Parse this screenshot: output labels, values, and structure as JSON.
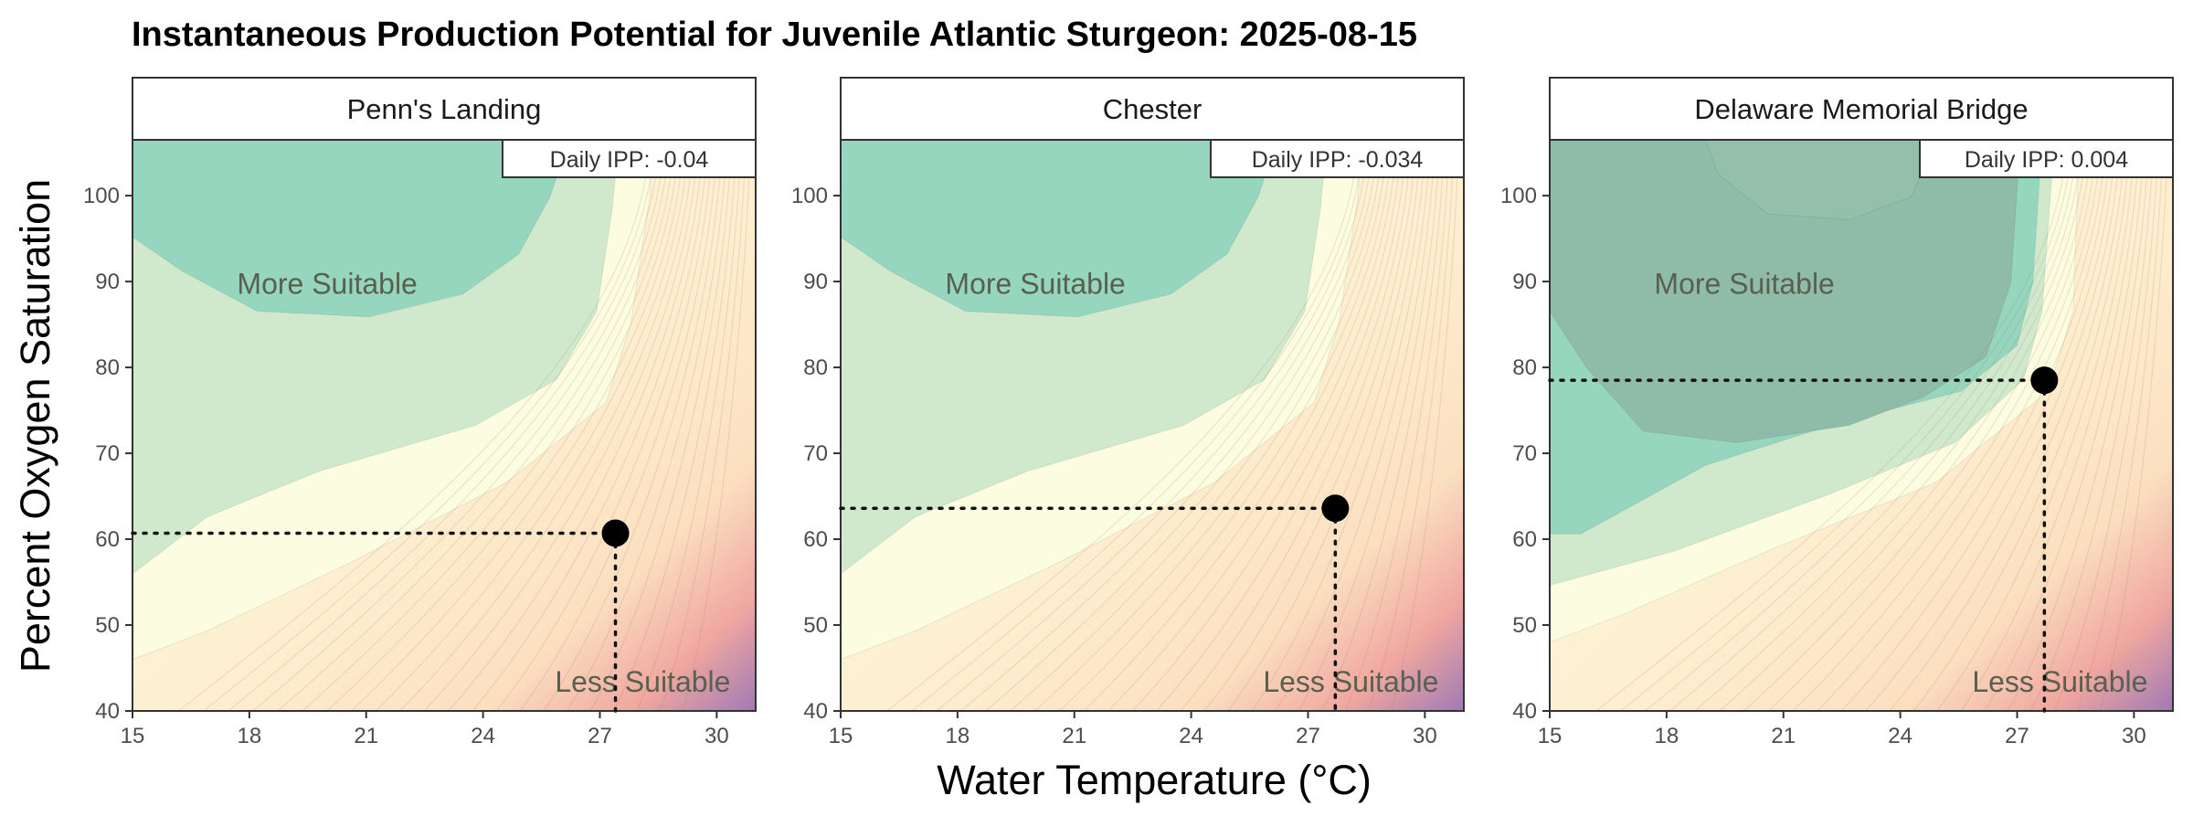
{
  "chart_data": {
    "type": "contour",
    "title": "Instantaneous Production Potential for Juvenile Atlantic Sturgeon: 2025-08-15",
    "xlabel": "Water Temperature (°C)",
    "ylabel": "Percent Oxygen Saturation",
    "xlim": [
      15,
      31
    ],
    "ylim": [
      40,
      106.5
    ],
    "x_ticks": [
      "15",
      "18",
      "21",
      "24",
      "27",
      "30"
    ],
    "y_ticks": [
      "40",
      "50",
      "60",
      "70",
      "80",
      "90",
      "100"
    ],
    "zone_labels": {
      "high": "More Suitable",
      "low": "Less Suitable"
    },
    "ipp_prefix": "Daily IPP: ",
    "colors": {
      "high": "#96d5be",
      "very_high": "#8fbca8",
      "mid": "#d0e9cd",
      "low": "#fcfce0",
      "warm": "#fdefd0",
      "hot": "#f0a7a0",
      "extreme": "#a07ab5"
    },
    "panels": [
      {
        "site": "Penn's Landing",
        "daily_ipp": "-0.04",
        "point": {
          "x": 27.4,
          "y": 60.7
        }
      },
      {
        "site": "Chester",
        "daily_ipp": "-0.034",
        "point": {
          "x": 27.7,
          "y": 63.6
        }
      },
      {
        "site": "Delaware Memorial Bridge",
        "daily_ipp": "0.004",
        "point": {
          "x": 27.7,
          "y": 78.5
        }
      }
    ]
  }
}
